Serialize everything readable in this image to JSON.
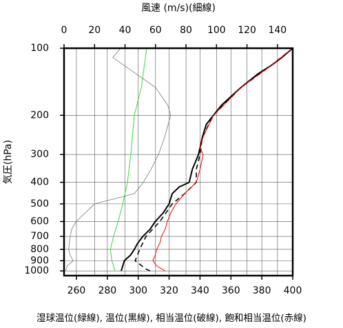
{
  "chart_data": {
    "type": "profile",
    "title": "風速 (m/s)(細線)",
    "xlabel": "湿球温位(緑線), 温位(黒線), 相当温位(破線), 飽和相当温位(赤線)",
    "ylabel": "気圧(hPa)",
    "xlim": [
      252,
      400
    ],
    "xticks": [
      260,
      280,
      300,
      320,
      340,
      360,
      380,
      400
    ],
    "x2lim": [
      0,
      150
    ],
    "x2ticks": [
      0,
      20,
      40,
      60,
      80,
      100,
      120,
      140
    ],
    "ylim": [
      1050,
      100
    ],
    "ylog": true,
    "yticks": [
      100,
      200,
      300,
      400,
      500,
      600,
      700,
      800,
      900,
      1000
    ],
    "grid": true,
    "series": [
      {
        "color": "#33dd33",
        "width": 1,
        "dash": false,
        "pressure": [
          100,
          150,
          200,
          300,
          400,
          500,
          600,
          700,
          800,
          900,
          1000
        ],
        "values": [
          305.5,
          302,
          297.5,
          295.2,
          293,
          290,
          287,
          284,
          282,
          283,
          285
        ]
      },
      {
        "color": "#000000",
        "width": 2,
        "dash": false,
        "pressure": [
          1000,
          950,
          900,
          850,
          800,
          750,
          700,
          650,
          600,
          550,
          500,
          450,
          420,
          400,
          350,
          300,
          280,
          250,
          220,
          200,
          180,
          160,
          150,
          130,
          120,
          110,
          100
        ],
        "values": [
          289,
          290,
          291,
          295,
          297.5,
          299.7,
          303,
          307.7,
          311,
          316,
          320,
          322,
          326.5,
          333,
          335,
          339,
          340,
          341.6,
          344,
          348.7,
          354,
          362,
          366.5,
          377.7,
          385.7,
          393,
          400
        ]
      },
      {
        "color": "#000000",
        "width": 1.6,
        "dash": true,
        "pressure": [
          1000,
          980,
          900,
          800,
          700,
          600,
          500,
          450,
          400,
          350,
          300,
          250,
          200,
          150,
          120,
          100
        ],
        "values": [
          307.7,
          305,
          298,
          301,
          305,
          314,
          322,
          330,
          337.6,
          337.6,
          340,
          341.6,
          348.7,
          366.5,
          385.7,
          400
        ]
      },
      {
        "color": "#ee0000",
        "width": 1,
        "dash": false,
        "pressure": [
          1000,
          950,
          900,
          850,
          800,
          750,
          700,
          650,
          600,
          550,
          500,
          450,
          400,
          350,
          300,
          280,
          250,
          200,
          150,
          120,
          100
        ],
        "values": [
          317.5,
          312,
          309.5,
          311,
          312,
          314,
          315,
          317.5,
          318.8,
          321,
          324.4,
          330,
          337.6,
          340,
          342,
          340,
          342,
          348.7,
          366.5,
          385.7,
          400
        ]
      },
      {
        "color": "#777777",
        "width": 0.8,
        "dash": false,
        "axis": "x2",
        "pressure": [
          100,
          110,
          150,
          180,
          200,
          250,
          300,
          350,
          400,
          450,
          500,
          600,
          650,
          700,
          800,
          850,
          900,
          950,
          1000
        ],
        "values": [
          37,
          32,
          60,
          68,
          70,
          66,
          62,
          57,
          52,
          46,
          20,
          8,
          5,
          4,
          3,
          4,
          6,
          2,
          1
        ]
      }
    ]
  }
}
